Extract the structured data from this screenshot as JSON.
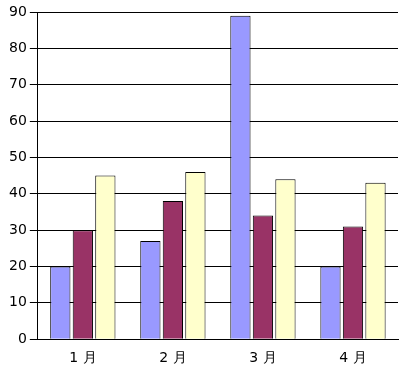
{
  "chart_data": {
    "type": "bar",
    "categories": [
      "1 月",
      "2 月",
      "3 月",
      "4 月"
    ],
    "series": [
      {
        "color": "#9999ff",
        "values": [
          20,
          27,
          89,
          20
        ]
      },
      {
        "color": "#993366",
        "values": [
          30,
          38,
          34,
          31
        ]
      },
      {
        "color": "#ffffcc",
        "values": [
          45,
          46,
          44,
          43
        ]
      }
    ],
    "ylim": [
      0,
      90
    ],
    "yticks": [
      0,
      10,
      20,
      30,
      40,
      50,
      60,
      70,
      80,
      90
    ],
    "grid": true
  }
}
